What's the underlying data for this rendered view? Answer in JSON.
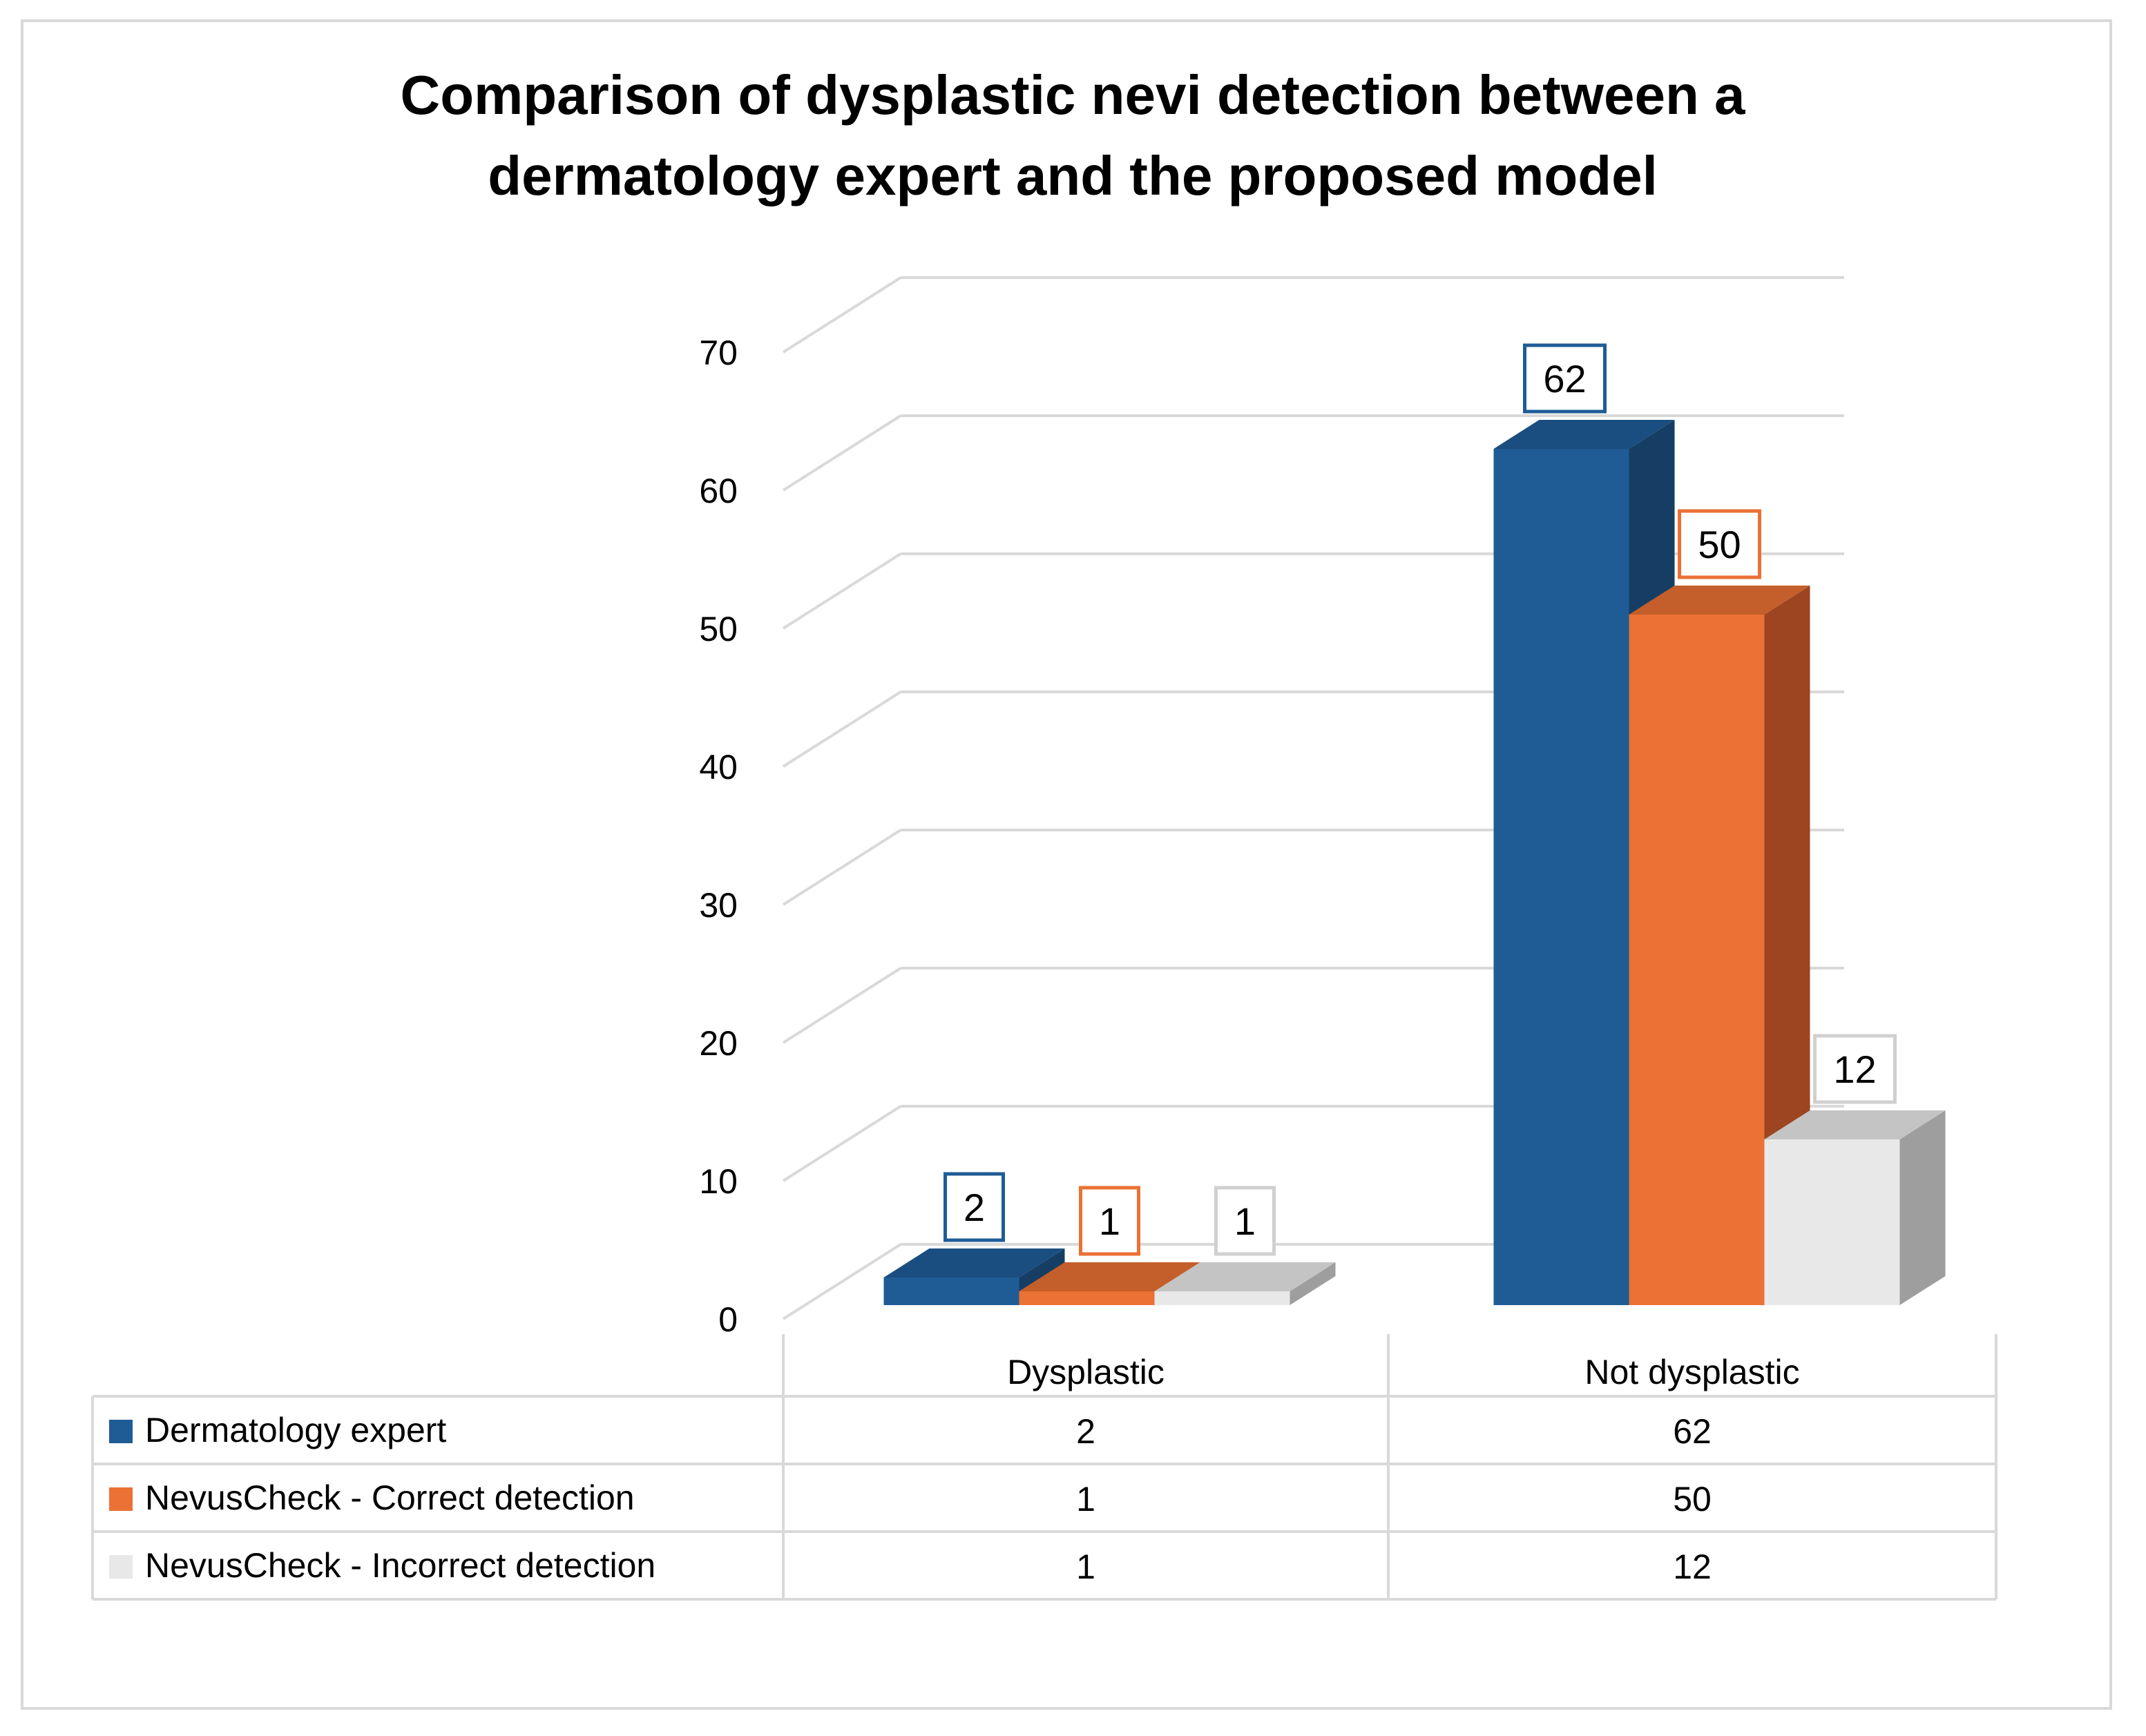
{
  "chart_data": {
    "type": "bar",
    "title": "Comparison of dysplastic nevi detection between a dermatology expert and the proposed model",
    "title_lines": [
      "Comparison of dysplastic  nevi detection between a",
      "dermatology expert and the proposed model"
    ],
    "xlabel": "",
    "ylabel": "",
    "ylim": [
      0,
      70
    ],
    "yticks": [
      0,
      10,
      20,
      30,
      40,
      50,
      60,
      70
    ],
    "grid": true,
    "legend_placement": "data-table-bottom",
    "categories": [
      "Dysplastic",
      "Not dysplastic"
    ],
    "series": [
      {
        "name": "Dermatology expert",
        "values": [
          2,
          62
        ],
        "color": "#1f5c96",
        "side_color": "#163e64",
        "top_color": "#1a4e80",
        "label_border": "#1f5c96"
      },
      {
        "name": "NevusCheck - Correct detection",
        "values": [
          1,
          50
        ],
        "color": "#eb7134",
        "side_color": "#9c4520",
        "top_color": "#c45e2a",
        "label_border": "#eb7134"
      },
      {
        "name": "NevusCheck - Incorrect detection",
        "values": [
          1,
          12
        ],
        "color": "#e8e8e8",
        "side_color": "#9e9e9e",
        "top_color": "#c4c4c4",
        "label_border": "#d0d0d0"
      }
    ]
  }
}
